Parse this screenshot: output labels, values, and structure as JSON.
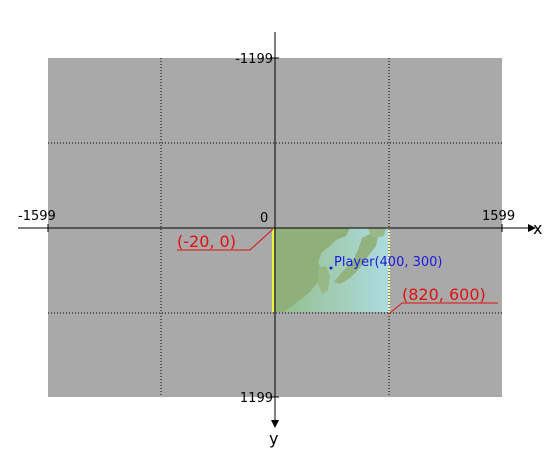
{
  "axes": {
    "x_label": "x",
    "y_label": "y",
    "x_min_label": "-1599",
    "x_max_label": "1599",
    "origin_label": "0",
    "y_min_label": "-1199",
    "y_max_label": "1199"
  },
  "map_region": {
    "top_left_label": "(-20, 0)",
    "bottom_right_label": "(820, 600)"
  },
  "player": {
    "label": "Player(400, 300)"
  },
  "colors": {
    "world_background": "#a9a9a9",
    "map_sea": "#a6d6d8",
    "map_land": "#93b77f",
    "viewport_edge": "#f0f040",
    "annotation_red": "#e01010",
    "player_blue": "#1a1ae0"
  }
}
